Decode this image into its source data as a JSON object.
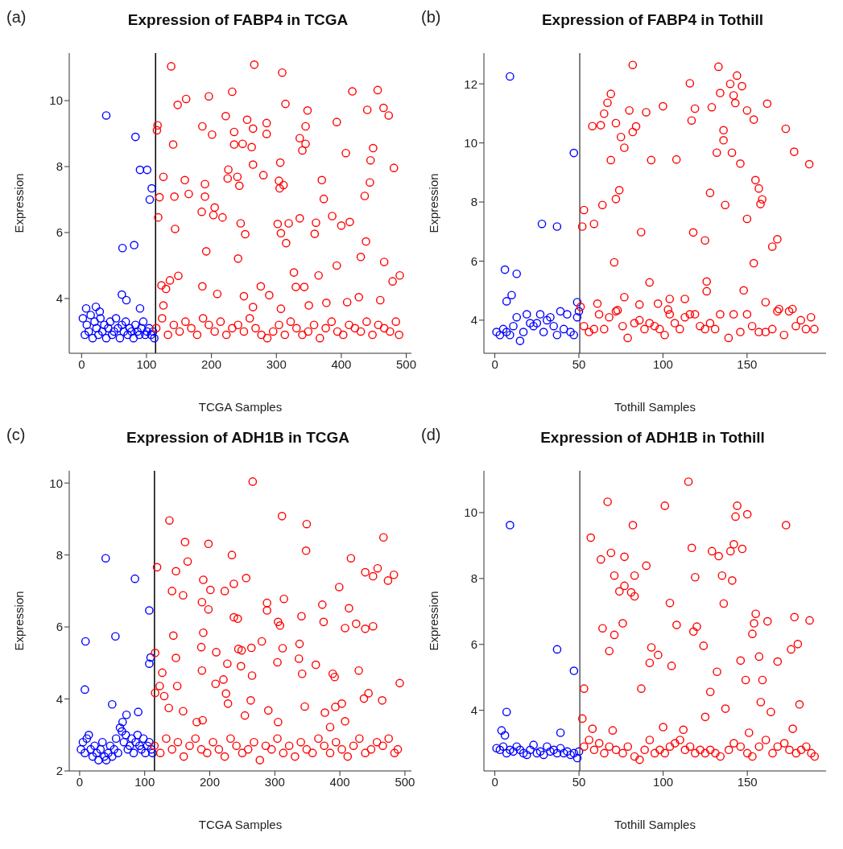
{
  "chart_data": [
    {
      "type": "scatter",
      "title": "Expression of FABP4 in TCGA",
      "xlabel": "TCGA Samples",
      "ylabel": "Expression",
      "annotations": [
        "(a)"
      ],
      "marker": "circle",
      "xlim": [
        -19,
        508
      ],
      "ylim": [
        2.34,
        11.44
      ],
      "xticks": [
        0,
        100,
        200,
        300,
        400,
        500
      ],
      "yticks": [
        4,
        6,
        8,
        10
      ],
      "ref_lines": [
        {
          "axis": "x",
          "value": 114,
          "color": "#000000"
        }
      ],
      "series": [
        {
          "color": "#0000ff",
          "x": [
            7,
            22,
            28,
            38,
            62,
            63,
            69,
            81,
            83,
            90,
            90,
            101,
            105,
            108,
            2,
            5,
            8,
            11,
            14,
            17,
            20,
            23,
            26,
            29,
            32,
            35,
            38,
            41,
            44,
            47,
            50,
            53,
            56,
            59,
            62,
            65,
            68,
            71,
            74,
            77,
            80,
            83,
            86,
            89,
            92,
            95,
            98,
            101,
            104,
            107,
            110,
            112
          ],
          "values": [
            3.7,
            3.75,
            3.6,
            9.55,
            4.12,
            5.53,
            3.95,
            5.62,
            8.9,
            3.7,
            7.9,
            7.9,
            7.0,
            7.34,
            3.4,
            2.9,
            3.2,
            3.0,
            3.5,
            2.8,
            3.3,
            3.1,
            2.9,
            3.4,
            3.0,
            3.2,
            2.8,
            3.1,
            3.3,
            2.9,
            3.0,
            3.4,
            3.1,
            2.8,
            3.2,
            3.0,
            3.3,
            2.9,
            3.1,
            3.0,
            2.8,
            3.2,
            3.0,
            2.9,
            3.1,
            3.3,
            2.9,
            3.0,
            3.1,
            2.9,
            3.0,
            2.8
          ]
        },
        {
          "color": "#ff0000",
          "x": [
            138,
            266,
            309,
            232,
            417,
            456,
            161,
            196,
            148,
            314,
            348,
            440,
            465,
            473,
            222,
            255,
            117,
            186,
            264,
            285,
            285,
            201,
            345,
            393,
            116,
            235,
            336,
            345,
            340,
            141,
            235,
            248,
            262,
            449,
            407,
            445,
            306,
            264,
            481,
            226,
            280,
            126,
            240,
            225,
            159,
            370,
            304,
            311,
            243,
            190,
            444,
            305,
            165,
            143,
            190,
            120,
            373,
            436,
            205,
            185,
            203,
            217,
            118,
            336,
            386,
            413,
            302,
            319,
            245,
            361,
            400,
            307,
            252,
            359,
            144,
            315,
            438,
            192,
            430,
            241,
            466,
            393,
            327,
            365,
            490,
            479,
            149,
            136,
            123,
            130,
            330,
            343,
            186,
            276,
            209,
            289,
            250,
            427,
            460,
            126,
            307,
            350,
            377,
            409,
            264,
            115,
            124,
            133,
            142,
            151,
            160,
            169,
            178,
            187,
            196,
            205,
            214,
            223,
            232,
            241,
            250,
            259,
            268,
            277,
            286,
            295,
            304,
            313,
            322,
            331,
            340,
            349,
            358,
            367,
            376,
            385,
            394,
            403,
            412,
            421,
            430,
            439,
            448,
            457,
            466,
            475,
            484,
            489
          ],
          "values": [
            11.04,
            11.09,
            10.85,
            10.27,
            10.28,
            10.32,
            10.05,
            10.13,
            9.87,
            9.9,
            9.7,
            9.72,
            9.78,
            9.55,
            9.53,
            9.42,
            9.25,
            9.22,
            9.15,
            9.32,
            8.99,
            8.97,
            9.22,
            9.35,
            9.1,
            9.05,
            8.86,
            8.69,
            8.49,
            8.67,
            8.67,
            8.69,
            8.59,
            8.56,
            8.41,
            8.19,
            8.12,
            8.06,
            7.96,
            7.91,
            7.74,
            7.69,
            7.69,
            7.64,
            7.59,
            7.59,
            7.57,
            7.44,
            7.42,
            7.47,
            7.52,
            7.34,
            7.17,
            7.09,
            7.09,
            7.07,
            7.02,
            7.11,
            6.76,
            6.63,
            6.53,
            6.46,
            6.46,
            6.43,
            6.5,
            6.32,
            6.26,
            6.28,
            6.28,
            6.3,
            6.21,
            5.98,
            5.95,
            5.96,
            6.11,
            5.68,
            5.73,
            5.43,
            5.26,
            5.21,
            5.11,
            5.0,
            4.79,
            4.7,
            4.7,
            4.52,
            4.69,
            4.55,
            4.4,
            4.29,
            4.35,
            4.35,
            4.37,
            4.37,
            4.14,
            4.1,
            4.07,
            4.04,
            3.95,
            3.79,
            3.69,
            3.79,
            3.87,
            3.89,
            3.74,
            3.1,
            3.4,
            2.9,
            3.2,
            3.0,
            3.3,
            3.1,
            2.9,
            3.4,
            3.2,
            3.0,
            3.3,
            2.9,
            3.1,
            3.2,
            3.0,
            3.4,
            3.1,
            2.9,
            2.8,
            3.0,
            3.2,
            2.9,
            3.3,
            3.1,
            2.9,
            3.0,
            3.2,
            2.8,
            3.1,
            3.3,
            3.0,
            2.9,
            3.2,
            3.1,
            3.0,
            3.3,
            2.9,
            3.2,
            3.1,
            3.0,
            3.3,
            2.9
          ]
        }
      ]
    },
    {
      "type": "scatter",
      "title": "Expression of FABP4 in Tothill",
      "xlabel": "Tothill Samples",
      "ylabel": "Expression",
      "annotations": [
        "(b)"
      ],
      "marker": "circle",
      "xlim": [
        -6.5,
        197
      ],
      "ylim": [
        2.88,
        13.04
      ],
      "xticks": [
        0,
        50,
        100,
        150
      ],
      "yticks": [
        4,
        6,
        8,
        10,
        12
      ],
      "ref_lines": [
        {
          "axis": "x",
          "value": 50.5,
          "color": "#555555"
        }
      ],
      "series": [
        {
          "color": "#0000ff",
          "x": [
            9,
            47,
            28,
            37,
            6,
            13,
            10,
            7,
            49,
            1,
            3,
            5,
            7,
            9,
            11,
            13,
            15,
            17,
            19,
            21,
            23,
            25,
            27,
            29,
            31,
            33,
            35,
            37,
            39,
            41,
            43,
            45,
            47,
            49,
            50
          ],
          "values": [
            12.25,
            9.66,
            7.26,
            7.17,
            5.71,
            5.57,
            4.85,
            4.64,
            4.61,
            3.6,
            3.5,
            3.7,
            3.6,
            3.5,
            3.8,
            4.1,
            3.3,
            3.6,
            4.2,
            3.9,
            3.8,
            3.9,
            4.2,
            3.6,
            4.0,
            4.1,
            3.8,
            3.5,
            4.3,
            3.7,
            4.2,
            3.6,
            3.5,
            4.1,
            4.3
          ]
        },
        {
          "color": "#ff0000",
          "x": [
            82,
            133,
            144,
            116,
            140,
            147,
            134,
            142,
            69,
            143,
            162,
            67,
            129,
            100,
            119,
            80,
            90,
            150,
            65,
            117,
            154,
            58,
            63,
            72,
            84,
            173,
            82,
            136,
            75,
            136,
            77,
            132,
            141,
            178,
            69,
            93,
            108,
            146,
            187,
            155,
            157,
            159,
            158,
            74,
            72,
            128,
            137,
            64,
            53,
            150,
            52,
            59,
            87,
            118,
            125,
            168,
            165,
            71,
            154,
            92,
            126,
            126,
            148,
            77,
            104,
            113,
            161,
            61,
            86,
            97,
            73,
            51,
            103,
            169,
            177,
            53,
            56,
            59,
            62,
            65,
            68,
            72,
            76,
            79,
            83,
            86,
            89,
            92,
            95,
            98,
            101,
            104,
            107,
            110,
            113,
            116,
            119,
            122,
            125,
            128,
            131,
            134,
            139,
            142,
            146,
            150,
            153,
            157,
            161,
            165,
            168,
            172,
            175,
            179,
            182,
            185,
            188,
            190
          ],
          "values": [
            12.64,
            12.58,
            12.28,
            12.02,
            12.0,
            11.92,
            11.69,
            11.61,
            11.66,
            11.35,
            11.33,
            11.36,
            11.21,
            11.24,
            11.16,
            11.1,
            11.04,
            11.1,
            10.99,
            10.76,
            10.79,
            10.57,
            10.6,
            10.67,
            10.56,
            10.48,
            10.37,
            10.43,
            10.2,
            10.09,
            9.84,
            9.67,
            9.67,
            9.7,
            9.42,
            9.42,
            9.44,
            9.3,
            9.28,
            8.74,
            8.46,
            8.09,
            7.93,
            8.4,
            8.1,
            8.31,
            7.9,
            7.9,
            7.73,
            7.43,
            7.17,
            7.26,
            6.98,
            6.97,
            6.7,
            6.74,
            6.49,
            5.96,
            5.93,
            5.28,
            5.31,
            4.98,
            5.01,
            4.78,
            4.72,
            4.72,
            4.61,
            4.56,
            4.53,
            4.56,
            4.34,
            4.45,
            4.36,
            4.38,
            4.38,
            3.8,
            3.6,
            3.7,
            4.2,
            3.7,
            4.1,
            4.3,
            3.8,
            3.4,
            3.9,
            4.0,
            3.7,
            3.9,
            3.8,
            3.7,
            3.5,
            4.2,
            3.9,
            3.7,
            4.1,
            4.2,
            4.2,
            3.8,
            3.7,
            3.9,
            3.7,
            4.2,
            3.4,
            4.2,
            3.6,
            4.2,
            3.8,
            3.6,
            3.6,
            3.7,
            4.3,
            3.5,
            4.3,
            3.8,
            4.0,
            3.7,
            4.1,
            3.7
          ]
        }
      ]
    },
    {
      "type": "scatter",
      "title": "Expression of ADH1B in TCGA",
      "xlabel": "TCGA Samples",
      "ylabel": "Expression",
      "annotations": [
        "(c)"
      ],
      "marker": "circle",
      "xlim": [
        -16,
        510
      ],
      "ylim": [
        2,
        10.34
      ],
      "xticks": [
        0,
        100,
        200,
        300,
        400,
        500
      ],
      "yticks": [
        2,
        4,
        6,
        8,
        10
      ],
      "ref_lines": [
        {
          "axis": "x",
          "value": 115,
          "color": "#000000"
        }
      ],
      "series": [
        {
          "color": "#0000ff",
          "x": [
            40,
            85,
            107,
            9,
            55,
            109,
            107,
            8,
            50,
            90,
            72,
            66,
            2,
            5,
            8,
            11,
            14,
            17,
            20,
            23,
            26,
            29,
            32,
            35,
            38,
            41,
            44,
            47,
            50,
            53,
            56,
            59,
            62,
            65,
            68,
            71,
            74,
            77,
            80,
            83,
            86,
            89,
            92,
            95,
            98,
            101,
            104,
            107,
            110,
            112
          ],
          "values": [
            7.91,
            7.34,
            6.46,
            5.6,
            5.74,
            5.15,
            4.98,
            4.26,
            3.85,
            3.64,
            3.56,
            3.36,
            2.6,
            2.8,
            2.5,
            2.9,
            3.0,
            2.6,
            2.4,
            2.7,
            2.5,
            2.3,
            2.6,
            2.8,
            2.4,
            2.3,
            2.5,
            2.7,
            2.4,
            2.6,
            2.9,
            2.5,
            3.2,
            3.1,
            2.8,
            3.0,
            2.6,
            2.7,
            2.9,
            2.5,
            2.8,
            3.0,
            2.7,
            2.6,
            2.9,
            2.5,
            2.7,
            2.8,
            2.6,
            2.5
          ]
        },
        {
          "color": "#ff0000",
          "x": [
            266,
            311,
            138,
            349,
            467,
            162,
            198,
            166,
            234,
            417,
            348,
            119,
            148,
            458,
            439,
            451,
            483,
            474,
            256,
            190,
            237,
            142,
            201,
            223,
            159,
            399,
            314,
            288,
            188,
            198,
            288,
            373,
            414,
            237,
            243,
            341,
            375,
            305,
            308,
            425,
            408,
            439,
            451,
            144,
            190,
            280,
            338,
            116,
            210,
            187,
            244,
            249,
            264,
            312,
            148,
            337,
            227,
            248,
            304,
            363,
            429,
            127,
            188,
            265,
            342,
            389,
            392,
            209,
            221,
            492,
            116,
            123,
            150,
            225,
            130,
            444,
            437,
            465,
            263,
            228,
            346,
            403,
            393,
            137,
            290,
            377,
            159,
            254,
            189,
            180,
            305,
            408,
            385,
            115,
            124,
            133,
            142,
            151,
            160,
            169,
            178,
            187,
            196,
            205,
            214,
            223,
            232,
            241,
            250,
            259,
            268,
            277,
            286,
            295,
            304,
            313,
            322,
            331,
            340,
            349,
            358,
            367,
            376,
            385,
            394,
            403,
            412,
            421,
            430,
            439,
            448,
            457,
            466,
            475,
            484,
            489
          ],
          "values": [
            10.04,
            9.08,
            8.96,
            8.86,
            8.49,
            8.36,
            8.31,
            7.82,
            8.0,
            7.91,
            8.12,
            7.66,
            7.55,
            7.63,
            7.52,
            7.41,
            7.45,
            7.29,
            7.36,
            7.31,
            7.2,
            7.0,
            7.03,
            7.0,
            6.88,
            7.11,
            6.78,
            6.67,
            6.69,
            6.49,
            6.46,
            6.62,
            6.52,
            6.27,
            6.23,
            6.3,
            6.14,
            6.14,
            6.04,
            6.09,
            5.97,
            5.95,
            6.02,
            5.76,
            5.84,
            5.6,
            5.53,
            5.28,
            5.3,
            5.44,
            5.39,
            5.35,
            5.42,
            5.41,
            5.14,
            5.12,
            4.98,
            4.91,
            5.02,
            4.95,
            4.79,
            4.73,
            4.79,
            4.65,
            4.7,
            4.7,
            4.61,
            4.42,
            4.54,
            4.44,
            4.17,
            4.36,
            4.36,
            4.15,
            4.08,
            4.16,
            4.01,
            3.96,
            3.96,
            3.87,
            3.79,
            3.87,
            3.78,
            3.75,
            3.68,
            3.62,
            3.66,
            3.54,
            3.41,
            3.36,
            3.36,
            3.38,
            3.22,
            2.7,
            2.5,
            2.9,
            2.6,
            2.8,
            2.4,
            2.7,
            2.9,
            2.6,
            2.5,
            2.8,
            2.6,
            2.4,
            2.9,
            2.7,
            2.5,
            2.6,
            2.8,
            2.3,
            2.7,
            2.6,
            2.9,
            2.5,
            2.7,
            2.4,
            2.8,
            2.6,
            2.5,
            2.9,
            2.7,
            2.5,
            2.8,
            2.6,
            2.4,
            2.7,
            2.9,
            2.5,
            2.6,
            2.8,
            2.7,
            2.9,
            2.5,
            2.6
          ]
        }
      ]
    },
    {
      "type": "scatter",
      "title": "Expression of ADH1B in Tothill",
      "xlabel": "Tothill Samples",
      "ylabel": "Expression",
      "annotations": [
        "(d)"
      ],
      "marker": "circle",
      "xlim": [
        -6.5,
        196.8
      ],
      "ylim": [
        2.16,
        11.27
      ],
      "xticks": [
        0,
        50,
        100,
        150
      ],
      "yticks": [
        4,
        6,
        8,
        10
      ],
      "ref_lines": [
        {
          "axis": "x",
          "value": 50.5,
          "color": "#555555"
        }
      ],
      "series": [
        {
          "color": "#0000ff",
          "x": [
            9,
            37,
            47,
            7,
            4,
            6,
            39,
            1,
            3,
            5,
            7,
            9,
            11,
            13,
            15,
            17,
            19,
            21,
            23,
            25,
            27,
            29,
            31,
            33,
            35,
            37,
            39,
            41,
            43,
            45,
            47,
            49,
            50
          ],
          "values": [
            9.62,
            5.85,
            5.2,
            3.95,
            3.39,
            3.24,
            3.32,
            2.85,
            2.8,
            2.9,
            2.7,
            2.8,
            2.75,
            2.9,
            2.8,
            2.7,
            2.65,
            2.8,
            2.95,
            2.7,
            2.75,
            2.65,
            2.9,
            2.75,
            2.8,
            2.7,
            2.85,
            2.7,
            2.75,
            2.65,
            2.7,
            2.55,
            2.75
          ]
        },
        {
          "color": "#ff0000",
          "x": [
            115,
            67,
            101,
            144,
            143,
            150,
            82,
            173,
            57,
            117,
            142,
            147,
            129,
            140,
            133,
            69,
            77,
            63,
            90,
            71,
            83,
            119,
            135,
            141,
            77,
            74,
            81,
            83,
            104,
            136,
            155,
            162,
            178,
            187,
            154,
            76,
            108,
            120,
            118,
            64,
            71,
            153,
            124,
            180,
            176,
            68,
            93,
            97,
            157,
            146,
            168,
            92,
            105,
            132,
            149,
            159,
            53,
            87,
            128,
            158,
            181,
            164,
            137,
            125,
            52,
            70,
            112,
            100,
            177,
            151,
            58,
            53,
            56,
            59,
            62,
            65,
            68,
            72,
            76,
            79,
            83,
            86,
            89,
            92,
            95,
            98,
            101,
            104,
            107,
            110,
            113,
            116,
            119,
            122,
            125,
            128,
            131,
            134,
            139,
            142,
            146,
            150,
            153,
            157,
            161,
            165,
            168,
            172,
            175,
            179,
            182,
            185,
            188,
            190
          ],
          "values": [
            10.94,
            10.33,
            10.21,
            10.21,
            9.88,
            9.95,
            9.62,
            9.62,
            9.24,
            8.93,
            9.04,
            8.9,
            8.83,
            8.83,
            8.68,
            8.78,
            8.66,
            8.58,
            8.39,
            8.09,
            8.09,
            8.04,
            8.09,
            7.94,
            7.78,
            7.61,
            7.58,
            7.46,
            7.26,
            7.24,
            6.93,
            6.7,
            6.83,
            6.73,
            6.64,
            6.64,
            6.59,
            6.54,
            6.39,
            6.49,
            6.29,
            6.32,
            5.96,
            6.01,
            5.85,
            5.8,
            5.91,
            5.68,
            5.63,
            5.51,
            5.48,
            5.44,
            5.35,
            5.17,
            4.92,
            4.92,
            4.66,
            4.66,
            4.56,
            4.25,
            4.18,
            3.95,
            4.05,
            3.8,
            3.75,
            3.39,
            3.41,
            3.49,
            3.44,
            3.32,
            3.44,
            2.9,
            3.1,
            2.8,
            3.0,
            2.7,
            2.9,
            2.8,
            2.7,
            2.9,
            2.6,
            2.5,
            2.8,
            3.1,
            2.7,
            2.8,
            2.7,
            2.9,
            3.0,
            3.1,
            2.8,
            2.9,
            2.7,
            2.8,
            2.7,
            2.8,
            2.7,
            2.6,
            2.8,
            3.0,
            2.9,
            2.7,
            2.6,
            2.9,
            3.1,
            2.7,
            2.9,
            3.0,
            2.8,
            2.7,
            2.8,
            2.9,
            2.7,
            2.6
          ]
        }
      ]
    }
  ]
}
